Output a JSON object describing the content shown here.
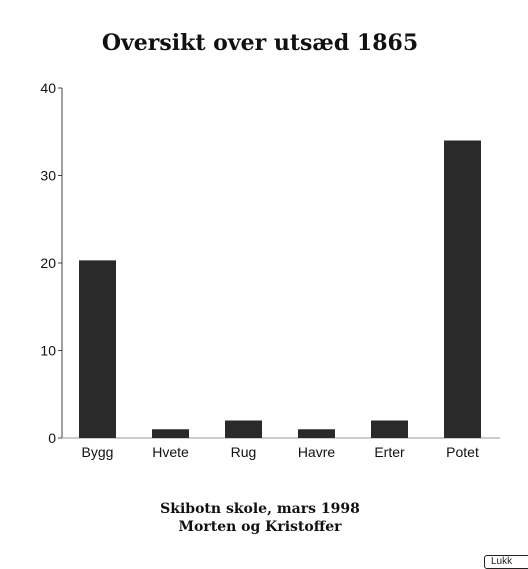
{
  "chart_data": {
    "type": "bar",
    "title": "Oversikt over utsæd 1865",
    "categories": [
      "Bygg",
      "Hvete",
      "Rug",
      "Havre",
      "Erter",
      "Potet"
    ],
    "values": [
      20.3,
      1,
      2,
      1,
      2,
      34
    ],
    "ylim": [
      0,
      40
    ],
    "yticks": [
      0,
      10,
      20,
      30,
      40
    ],
    "bar_color": "#2a2a2a",
    "grid": false
  },
  "footer": {
    "line1": "Skibotn skole, mars 1998",
    "line2": "Morten og Kristoffer"
  },
  "close_button": {
    "label": "Lukk"
  }
}
